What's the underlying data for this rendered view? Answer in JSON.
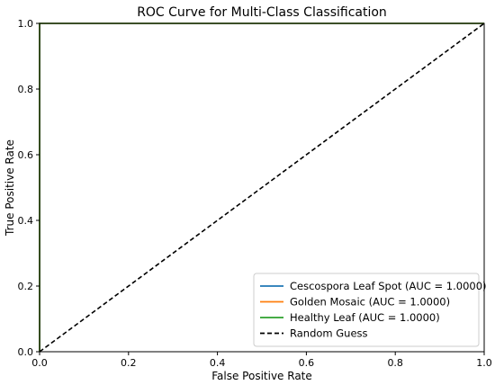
{
  "chart_data": {
    "type": "line",
    "title": "ROC Curve for Multi-Class Classification",
    "xlabel": "False Positive Rate",
    "ylabel": "True Positive Rate",
    "xlim": [
      0.0,
      1.0
    ],
    "ylim": [
      0.0,
      1.0
    ],
    "xticks": [
      "0.0",
      "0.2",
      "0.4",
      "0.6",
      "0.8",
      "1.0"
    ],
    "yticks": [
      "0.0",
      "0.2",
      "0.4",
      "0.6",
      "0.8",
      "1.0"
    ],
    "grid": false,
    "legend_position": "lower-right",
    "series": [
      {
        "name": "Cescospora Leaf Spot (AUC = 1.0000)",
        "color": "#1f77b4",
        "style": "solid",
        "x": [
          0.0,
          0.0,
          1.0
        ],
        "y": [
          0.0,
          1.0,
          1.0
        ]
      },
      {
        "name": "Golden Mosaic (AUC = 1.0000)",
        "color": "#ff7f0e",
        "style": "solid",
        "x": [
          0.0,
          0.0,
          1.0
        ],
        "y": [
          0.0,
          1.0,
          1.0
        ]
      },
      {
        "name": "Healthy Leaf (AUC = 1.0000)",
        "color": "#2ca02c",
        "style": "solid",
        "x": [
          0.0,
          0.0,
          1.0
        ],
        "y": [
          0.0,
          1.0,
          1.0
        ]
      },
      {
        "name": "Random Guess",
        "color": "#000000",
        "style": "dashed",
        "x": [
          0.0,
          1.0
        ],
        "y": [
          0.0,
          1.0
        ]
      }
    ]
  }
}
